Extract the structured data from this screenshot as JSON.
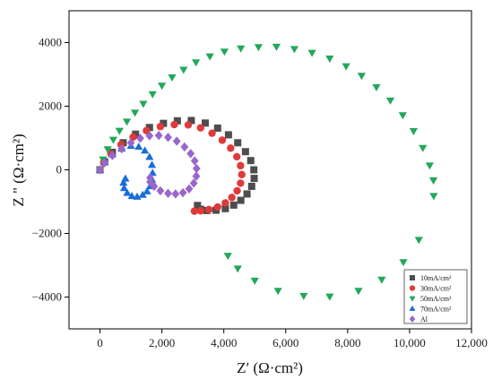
{
  "chart_data": {
    "type": "scatter",
    "title": "",
    "xlabel": "Z′ (Ω·cm²)",
    "ylabel": "Z \" (Ω·cm²)",
    "xlim": [
      -1000,
      12000
    ],
    "ylim": [
      -5000,
      5000
    ],
    "xticks": [
      0,
      2000,
      4000,
      6000,
      8000,
      10000,
      12000
    ],
    "xtick_labels": [
      "0",
      "2,000",
      "4,000",
      "6,000",
      "8,000",
      "10,000",
      "12,000"
    ],
    "yticks": [
      -4000,
      -2000,
      0,
      2000,
      4000
    ],
    "ytick_labels": [
      "−4000",
      "−2000",
      "0",
      "2000",
      "4000"
    ],
    "grid": false,
    "legend_position": "bottom-right",
    "series": [
      {
        "name": "10mA/cm²",
        "marker": "square",
        "color": "#4d4d4d",
        "points": [
          [
            0,
            0
          ],
          [
            150,
            250
          ],
          [
            400,
            550
          ],
          [
            750,
            850
          ],
          [
            1150,
            1120
          ],
          [
            1600,
            1330
          ],
          [
            2050,
            1460
          ],
          [
            2500,
            1540
          ],
          [
            2950,
            1550
          ],
          [
            3400,
            1470
          ],
          [
            3800,
            1310
          ],
          [
            4150,
            1100
          ],
          [
            4450,
            850
          ],
          [
            4700,
            570
          ],
          [
            4870,
            290
          ],
          [
            4970,
            0
          ],
          [
            4980,
            -270
          ],
          [
            4900,
            -520
          ],
          [
            4750,
            -760
          ],
          [
            4550,
            -960
          ],
          [
            4320,
            -1110
          ],
          [
            4050,
            -1220
          ],
          [
            3750,
            -1270
          ],
          [
            3450,
            -1280
          ],
          [
            3250,
            -1240
          ],
          [
            3150,
            -1120
          ]
        ]
      },
      {
        "name": "30mA/cm²",
        "marker": "circle",
        "color": "#e03a3a",
        "points": [
          [
            0,
            0
          ],
          [
            120,
            230
          ],
          [
            350,
            510
          ],
          [
            680,
            790
          ],
          [
            1070,
            1030
          ],
          [
            1500,
            1230
          ],
          [
            1950,
            1360
          ],
          [
            2400,
            1420
          ],
          [
            2850,
            1410
          ],
          [
            3250,
            1320
          ],
          [
            3620,
            1150
          ],
          [
            3950,
            930
          ],
          [
            4220,
            680
          ],
          [
            4420,
            410
          ],
          [
            4540,
            130
          ],
          [
            4580,
            -150
          ],
          [
            4540,
            -420
          ],
          [
            4430,
            -660
          ],
          [
            4260,
            -870
          ],
          [
            4050,
            -1040
          ],
          [
            3800,
            -1170
          ],
          [
            3520,
            -1250
          ],
          [
            3250,
            -1290
          ],
          [
            3050,
            -1300
          ]
        ]
      },
      {
        "name": "50mA/cm²",
        "marker": "triangle-down",
        "color": "#22a85a",
        "points": [
          [
            0,
            0
          ],
          [
            100,
            330
          ],
          [
            250,
            650
          ],
          [
            430,
            950
          ],
          [
            630,
            1230
          ],
          [
            870,
            1520
          ],
          [
            1130,
            1800
          ],
          [
            1400,
            2080
          ],
          [
            1700,
            2380
          ],
          [
            2000,
            2650
          ],
          [
            2330,
            2910
          ],
          [
            2700,
            3150
          ],
          [
            3100,
            3380
          ],
          [
            3550,
            3570
          ],
          [
            4020,
            3720
          ],
          [
            4550,
            3820
          ],
          [
            5120,
            3860
          ],
          [
            5700,
            3870
          ],
          [
            6280,
            3800
          ],
          [
            6850,
            3680
          ],
          [
            7420,
            3500
          ],
          [
            7950,
            3260
          ],
          [
            8450,
            2960
          ],
          [
            8930,
            2600
          ],
          [
            9380,
            2180
          ],
          [
            9780,
            1720
          ],
          [
            10130,
            1220
          ],
          [
            10430,
            690
          ],
          [
            10650,
            140
          ],
          [
            10770,
            -330
          ],
          [
            10780,
            -820
          ],
          [
            10300,
            -2200
          ],
          [
            9800,
            -2900
          ],
          [
            9100,
            -3450
          ],
          [
            8350,
            -3800
          ],
          [
            7420,
            -3980
          ],
          [
            6580,
            -3960
          ],
          [
            5750,
            -3800
          ],
          [
            5000,
            -3480
          ],
          [
            4450,
            -3100
          ],
          [
            4130,
            -2700
          ]
        ]
      },
      {
        "name": "70mA/cm²",
        "marker": "triangle-up",
        "color": "#1a6dd8",
        "points": [
          [
            0,
            0
          ],
          [
            150,
            250
          ],
          [
            400,
            480
          ],
          [
            700,
            660
          ],
          [
            1000,
            750
          ],
          [
            1250,
            720
          ],
          [
            1450,
            600
          ],
          [
            1600,
            400
          ],
          [
            1680,
            150
          ],
          [
            1700,
            -100
          ],
          [
            1680,
            -320
          ],
          [
            1620,
            -520
          ],
          [
            1520,
            -680
          ],
          [
            1380,
            -790
          ],
          [
            1200,
            -850
          ],
          [
            1030,
            -830
          ],
          [
            880,
            -730
          ],
          [
            780,
            -580
          ],
          [
            760,
            -410
          ],
          [
            820,
            -280
          ]
        ]
      },
      {
        "name": "Al",
        "marker": "diamond",
        "color": "#9966cc",
        "points": [
          [
            0,
            0
          ],
          [
            150,
            220
          ],
          [
            400,
            450
          ],
          [
            700,
            660
          ],
          [
            1000,
            850
          ],
          [
            1300,
            990
          ],
          [
            1600,
            1070
          ],
          [
            1900,
            1080
          ],
          [
            2200,
            1020
          ],
          [
            2480,
            900
          ],
          [
            2730,
            720
          ],
          [
            2930,
            510
          ],
          [
            3060,
            280
          ],
          [
            3120,
            40
          ],
          [
            3110,
            -200
          ],
          [
            3030,
            -420
          ],
          [
            2880,
            -600
          ],
          [
            2680,
            -720
          ],
          [
            2440,
            -760
          ],
          [
            2200,
            -740
          ],
          [
            1950,
            -660
          ],
          [
            1750,
            -520
          ],
          [
            1620,
            -380
          ],
          [
            1620,
            -250
          ]
        ]
      }
    ]
  }
}
